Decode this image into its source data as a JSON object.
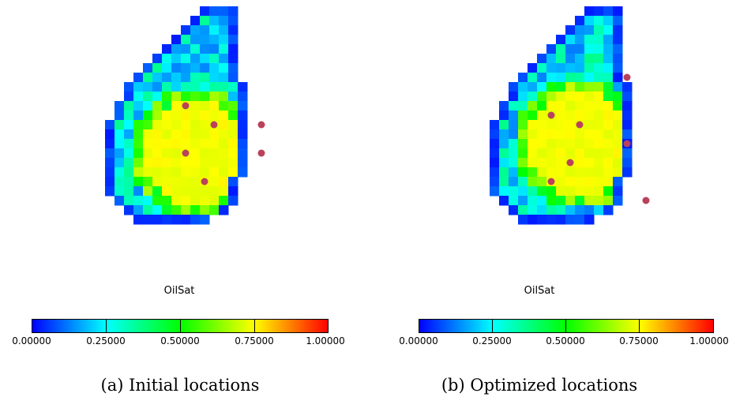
{
  "panels": [
    {
      "caption": "(a) Initial locations",
      "variable": "OilSat",
      "wells": [
        [
          7,
          11
        ],
        [
          8,
          5
        ],
        [
          5,
          3
        ],
        [
          13,
          5
        ],
        [
          5,
          8
        ],
        [
          13,
          8
        ]
      ]
    },
    {
      "caption": "(b) Optimized locations",
      "variable": "OilSat",
      "wells": [
        [
          5,
          9
        ],
        [
          11,
          7
        ],
        [
          3,
          4
        ],
        [
          11,
          0
        ],
        [
          6,
          5
        ],
        [
          3,
          11
        ],
        [
          13,
          13
        ]
      ]
    }
  ],
  "colorbar": {
    "ticks": [
      "0.00000",
      "0.25000",
      "0.50000",
      "0.75000",
      "1.00000"
    ],
    "colors": [
      "#0000ff",
      "#00ffff",
      "#00ff00",
      "#ffff00",
      "#ff0000"
    ]
  }
}
